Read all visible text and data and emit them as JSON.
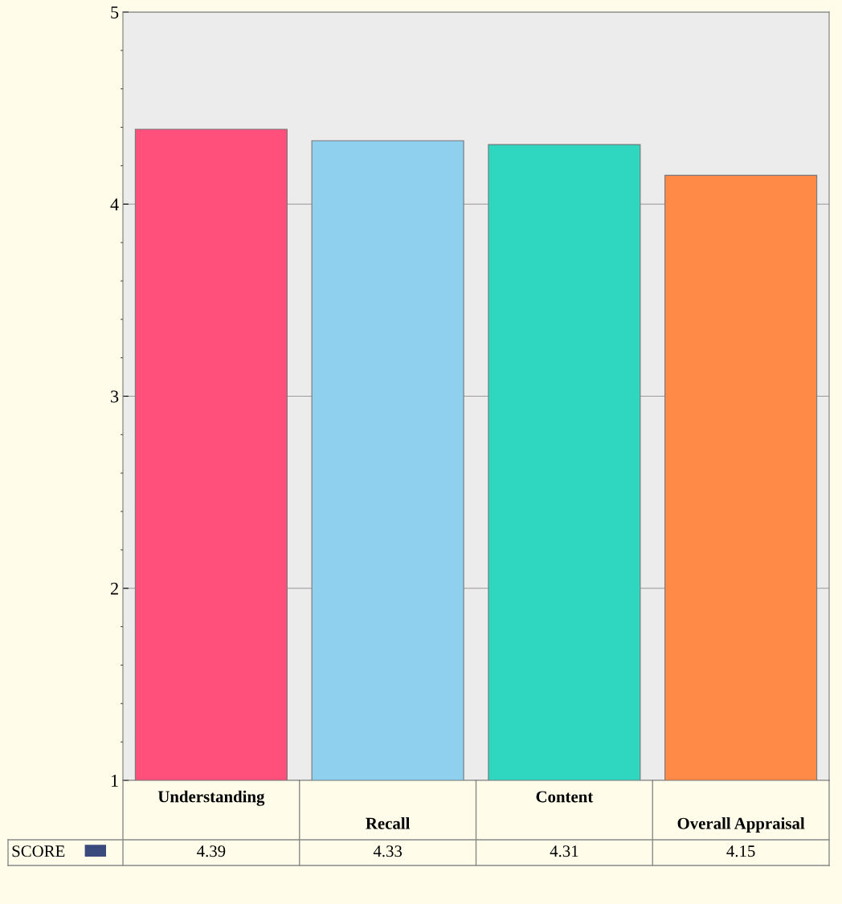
{
  "chart_data": {
    "type": "bar",
    "categories": [
      "Understanding",
      "Recall",
      "Content",
      "Overall Appraisal"
    ],
    "series": [
      {
        "name": "SCORE",
        "color": "#3b4a7c",
        "colors": [
          "#ff4f7b",
          "#8fd0ee",
          "#2fd6c0",
          "#ff8a48"
        ],
        "values": [
          4.39,
          4.33,
          4.31,
          4.15
        ]
      }
    ],
    "ylim": [
      1,
      5
    ],
    "yticks": [
      1,
      2,
      3,
      4,
      5
    ],
    "grid": "y",
    "data_labels": true,
    "legend": "bottom"
  }
}
